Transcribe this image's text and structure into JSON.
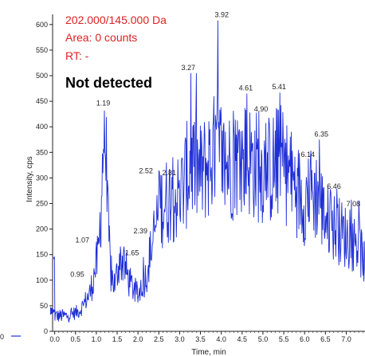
{
  "transition": "202.000/145.000 Da",
  "area": "Area: 0 counts",
  "rt": "RT: -",
  "status": "Not detected",
  "left_tick_fragment": "0",
  "colors": {
    "trace": "#1f2fd6",
    "info_text": "#e02020",
    "axis": "#222222",
    "marker": "#1f2fd6"
  },
  "chart_data": {
    "type": "line",
    "xlabel": "Time, min",
    "ylabel": "Intensity, cps",
    "xlim": [
      -0.05,
      7.45
    ],
    "ylim": [
      0,
      620
    ],
    "x_ticks": [
      "0.0",
      "0.5",
      "1.0",
      "1.5",
      "2.0",
      "2.5",
      "3.0",
      "3.5",
      "4.0",
      "4.5",
      "5.0",
      "5.5",
      "6.0",
      "6.5",
      "7.0"
    ],
    "y_ticks": [
      "0",
      "50",
      "100",
      "150",
      "200",
      "250",
      "300",
      "350",
      "400",
      "450",
      "500",
      "550",
      "600"
    ],
    "series": [
      {
        "envelope": [
          [
            0.0,
            30
          ],
          [
            0.3,
            30
          ],
          [
            0.6,
            40
          ],
          [
            0.85,
            75
          ],
          [
            0.95,
            110
          ],
          [
            1.05,
            150
          ],
          [
            1.12,
            260
          ],
          [
            1.19,
            420
          ],
          [
            1.26,
            240
          ],
          [
            1.35,
            110
          ],
          [
            1.45,
            90
          ],
          [
            1.55,
            140
          ],
          [
            1.65,
            135
          ],
          [
            1.8,
            95
          ],
          [
            2.0,
            70
          ],
          [
            2.2,
            110
          ],
          [
            2.39,
            190
          ],
          [
            2.52,
            245
          ],
          [
            2.7,
            255
          ],
          [
            2.81,
            265
          ],
          [
            3.0,
            260
          ],
          [
            3.27,
            330
          ],
          [
            3.5,
            305
          ],
          [
            3.7,
            330
          ],
          [
            3.92,
            360
          ],
          [
            4.1,
            320
          ],
          [
            4.3,
            330
          ],
          [
            4.61,
            340
          ],
          [
            4.9,
            320
          ],
          [
            5.2,
            315
          ],
          [
            5.41,
            335
          ],
          [
            5.7,
            295
          ],
          [
            6.0,
            255
          ],
          [
            6.14,
            270
          ],
          [
            6.35,
            265
          ],
          [
            6.46,
            225
          ],
          [
            6.7,
            205
          ],
          [
            7.08,
            180
          ],
          [
            7.3,
            170
          ],
          [
            7.45,
            130
          ]
        ],
        "peaks": [
          {
            "x": 1.19,
            "y": 432
          },
          {
            "x": 3.27,
            "y": 505
          },
          {
            "x": 3.92,
            "y": 608
          },
          {
            "x": 4.61,
            "y": 465
          },
          {
            "x": 5.41,
            "y": 467
          },
          {
            "x": 4.9,
            "y": 430
          },
          {
            "x": 6.35,
            "y": 375
          },
          {
            "x": 2.81,
            "y": 302
          },
          {
            "x": 2.52,
            "y": 312
          },
          {
            "x": 6.14,
            "y": 335
          },
          {
            "x": 6.46,
            "y": 282
          },
          {
            "x": 7.08,
            "y": 238
          },
          {
            "x": 2.39,
            "y": 198
          },
          {
            "x": 1.07,
            "y": 180
          },
          {
            "x": 1.65,
            "y": 155
          },
          {
            "x": 0.95,
            "y": 113
          }
        ]
      }
    ],
    "peak_labels": [
      {
        "text": "3.92",
        "x": 3.92,
        "y": 608,
        "dx": -4,
        "dy": -4
      },
      {
        "text": "3.27",
        "x": 3.27,
        "y": 505,
        "dx": -12,
        "dy": -4
      },
      {
        "text": "1.19",
        "x": 1.19,
        "y": 432,
        "dx": -10,
        "dy": -6
      },
      {
        "text": "4.61",
        "x": 4.61,
        "y": 465,
        "dx": -10,
        "dy": -4
      },
      {
        "text": "5.41",
        "x": 5.41,
        "y": 467,
        "dx": -10,
        "dy": -4
      },
      {
        "text": "4.90",
        "x": 4.9,
        "y": 430,
        "dx": -6,
        "dy": 0
      },
      {
        "text": "6.35",
        "x": 6.35,
        "y": 375,
        "dx": -6,
        "dy": -4
      },
      {
        "text": "6.14",
        "x": 6.14,
        "y": 335,
        "dx": -12,
        "dy": -4
      },
      {
        "text": "6.46",
        "x": 6.46,
        "y": 282,
        "dx": 4,
        "dy": 2
      },
      {
        "text": "7.08",
        "x": 7.08,
        "y": 238,
        "dx": -4,
        "dy": -4
      },
      {
        "text": "2.81",
        "x": 2.81,
        "y": 302,
        "dx": -12,
        "dy": -2
      },
      {
        "text": "2.52",
        "x": 2.52,
        "y": 312,
        "dx": -26,
        "dy": 2
      },
      {
        "text": "2.39",
        "x": 2.39,
        "y": 198,
        "dx": -26,
        "dy": 4
      },
      {
        "text": "1.07",
        "x": 1.07,
        "y": 180,
        "dx": -30,
        "dy": 4
      },
      {
        "text": "1.65",
        "x": 1.65,
        "y": 155,
        "dx": 2,
        "dy": 4
      },
      {
        "text": "0.95",
        "x": 0.95,
        "y": 113,
        "dx": -30,
        "dy": 4
      }
    ]
  }
}
